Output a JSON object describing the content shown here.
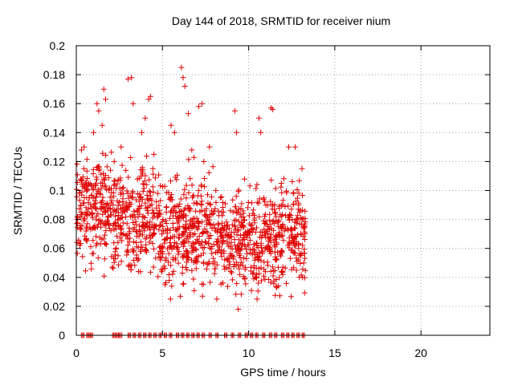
{
  "chart_data": {
    "type": "scatter",
    "title": "Day 144 of 2018, SRMTID for receiver nium",
    "xlabel": "GPS time / hours",
    "ylabel": "SRMTID / TECUs",
    "xlim": [
      0,
      24
    ],
    "ylim": [
      0,
      0.2
    ],
    "xticks": [
      0,
      5,
      10,
      15,
      20
    ],
    "xtick_labels": [
      "0",
      "5",
      "10",
      "15",
      "20"
    ],
    "yticks": [
      0,
      0.02,
      0.04,
      0.06,
      0.08,
      0.1,
      0.12,
      0.14,
      0.16,
      0.18,
      0.2
    ],
    "ytick_labels": [
      "0",
      "0.02",
      "0.04",
      "0.06",
      "0.08",
      "0.1",
      "0.12",
      "0.14",
      "0.16",
      "0.18",
      "0.2"
    ],
    "grid": true,
    "legend": "none",
    "marker": "+",
    "series": [
      {
        "name": "SRMTID",
        "color": "#e00000",
        "x_range": [
          0,
          13.3
        ],
        "y_median": 0.07,
        "n_points": 1400,
        "x": [
          0.3,
          0.6,
          1.0,
          1.2,
          1.3,
          1.5,
          1.6,
          1.7,
          2.2,
          2.6,
          3.0,
          3.2,
          3.3,
          3.8,
          4.0,
          4.2,
          4.3,
          4.5,
          5.5,
          5.7,
          6.1,
          6.2,
          6.3,
          6.5,
          6.7,
          7.1,
          7.3,
          7.4,
          8.1,
          9.2,
          9.3,
          9.4,
          10.6,
          10.7,
          11.3,
          11.4,
          11.9,
          12.7,
          12.9,
          13.2
        ],
        "y": [
          0.128,
          0.095,
          0.14,
          0.16,
          0.155,
          0.145,
          0.17,
          0.163,
          0.12,
          0.13,
          0.177,
          0.178,
          0.16,
          0.14,
          0.15,
          0.163,
          0.165,
          0.125,
          0.145,
          0.14,
          0.185,
          0.178,
          0.172,
          0.153,
          0.128,
          0.158,
          0.16,
          0.12,
          0.1,
          0.155,
          0.14,
          0.018,
          0.15,
          0.14,
          0.157,
          0.156,
          0.105,
          0.13,
          0.09,
          0.05
        ]
      }
    ],
    "zero_level_points": {
      "y": 0,
      "x": [
        0.3,
        0.6,
        0.8,
        2.1,
        2.3,
        2.5,
        3.0,
        3.3,
        3.6,
        3.9,
        4.2,
        4.5,
        4.8,
        5.1,
        5.4,
        5.8,
        6.1,
        6.4,
        6.7,
        7.0,
        7.3,
        7.7,
        8.1,
        8.6,
        9.0,
        9.4,
        9.8,
        10.1,
        10.4,
        10.8,
        11.2,
        11.5,
        11.9,
        12.2,
        12.5,
        12.8,
        13.1
      ]
    }
  }
}
